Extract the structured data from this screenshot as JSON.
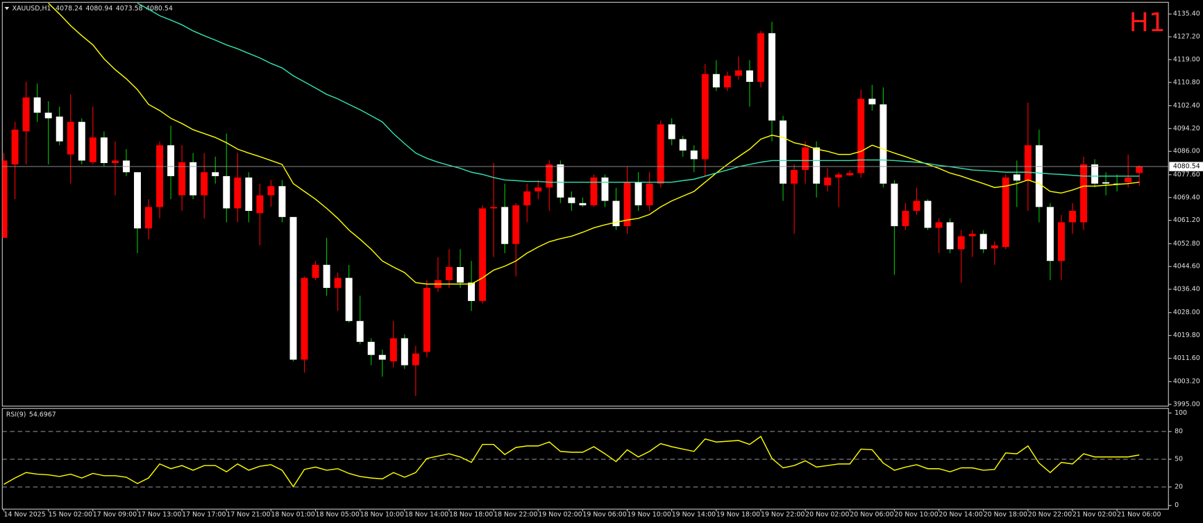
{
  "chart_data": [
    {
      "type": "candlestick",
      "title": "XAUUSD,H1",
      "timeframe": "H1",
      "categories": [
        "14 Nov 2025",
        null,
        null,
        null,
        "15 Nov 02:00",
        null,
        null,
        null,
        "17 Nov 09:00",
        null,
        null,
        null,
        "17 Nov 13:00",
        null,
        null,
        null,
        "17 Nov 17:00",
        null,
        null,
        null,
        "17 Nov 21:00",
        null,
        null,
        null,
        "18 Nov 01:00",
        null,
        null,
        null,
        "18 Nov 05:00",
        null,
        null,
        null,
        "18 Nov 10:00",
        null,
        null,
        null,
        "18 Nov 14:00",
        null,
        null,
        null,
        "18 Nov 18:00",
        null,
        null,
        null,
        "18 Nov 22:00",
        null,
        null,
        null,
        "19 Nov 02:00",
        null,
        null,
        null,
        "19 Nov 06:00",
        null,
        null,
        null,
        "19 Nov 10:00",
        null,
        null,
        null,
        "19 Nov 14:00",
        null,
        null,
        null,
        "19 Nov 18:00",
        null,
        null,
        null,
        "19 Nov 22:00",
        null,
        null,
        null,
        "20 Nov 02:00",
        null,
        null,
        null,
        "20 Nov 06:00",
        null,
        null,
        null,
        "20 Nov 10:00",
        null,
        null,
        null,
        "20 Nov 14:00",
        null,
        null,
        null,
        "20 Nov 18:00",
        null,
        null,
        null,
        "20 Nov 22:00",
        null,
        null,
        null,
        "21 Nov 02:00",
        null,
        null,
        null,
        "21 Nov 06:00",
        null,
        null
      ],
      "open": [
        4054.9,
        4081.3,
        4093.2,
        4105.4,
        4099.9,
        4098.5,
        4084.9,
        4096.6,
        4082.1,
        4091.0,
        4081.8,
        4082.7,
        4078.5,
        4058.3,
        4066.0,
        4088.2,
        4070.2,
        4082.1,
        4070.2,
        4078.5,
        4077.1,
        4065.5,
        4076.6,
        4063.8,
        4070.2,
        4073.5,
        4062.4,
        4011.1,
        4040.5,
        4045.2,
        4036.9,
        4040.5,
        4025.0,
        4017.5,
        4012.8,
        4010.5,
        4018.8,
        4009.1,
        4013.9,
        4036.9,
        4039.7,
        4044.4,
        4038.8,
        4032.2,
        4065.5,
        4066.0,
        4052.7,
        4066.6,
        4071.6,
        4073.0,
        4081.3,
        4069.4,
        4067.4,
        4066.6,
        4076.6,
        4068.2,
        4059.1,
        4074.9,
        4066.6,
        4074.4,
        4095.7,
        4090.4,
        4086.3,
        4083.2,
        4113.8,
        4109.0,
        4113.2,
        4115.1,
        4111.0,
        4128.5,
        4097.1,
        4074.4,
        4079.3,
        4087.4,
        4073.8,
        4076.6,
        4077.4,
        4078.2,
        4104.9,
        4102.9,
        4074.4,
        4059.1,
        4064.6,
        4068.2,
        4058.5,
        4060.5,
        4050.8,
        4055.5,
        4056.3,
        4051.1,
        4051.6,
        4077.7,
        4075.5,
        4088.2,
        4066.0,
        4046.6,
        4060.5,
        4060.5,
        4081.3,
        4074.9,
        4074.4,
        4074.9,
        4078.24
      ],
      "high": [
        4085.4,
        4096.6,
        4111.0,
        4110.4,
        4104.0,
        4102.1,
        4106.5,
        4097.9,
        4102.1,
        4093.2,
        4089.6,
        4086.8,
        4078.5,
        4068.8,
        4089.6,
        4095.2,
        4088.2,
        4085.4,
        4085.4,
        4084.1,
        4092.4,
        4085.4,
        4078.5,
        4074.4,
        4075.7,
        4075.7,
        4062.4,
        4041.0,
        4046.6,
        4054.9,
        4042.4,
        4045.2,
        4034.1,
        4018.8,
        4014.7,
        4025.0,
        4020.2,
        4016.1,
        4039.7,
        4048.0,
        4050.8,
        4050.8,
        4046.6,
        4066.6,
        4081.8,
        4074.4,
        4067.4,
        4074.4,
        4075.7,
        4082.7,
        4082.7,
        4071.6,
        4069.4,
        4077.7,
        4077.7,
        4072.9,
        4080.5,
        4078.5,
        4078.5,
        4097.1,
        4097.9,
        4091.6,
        4088.2,
        4117.4,
        4118.8,
        4114.6,
        4120.1,
        4118.8,
        4129.3,
        4132.6,
        4098.8,
        4081.3,
        4089.6,
        4089.6,
        4079.9,
        4078.5,
        4079.3,
        4108.2,
        4109.9,
        4109.0,
        4075.7,
        4067.4,
        4072.9,
        4068.8,
        4061.9,
        4061.9,
        4057.7,
        4057.7,
        4057.7,
        4053.6,
        4077.7,
        4082.7,
        4103.5,
        4093.8,
        4067.4,
        4063.2,
        4067.4,
        4084.1,
        4083.2,
        4078.5,
        4077.7,
        4084.9,
        4080.94
      ],
      "low": [
        4054.9,
        4068.8,
        4081.3,
        4096.6,
        4081.3,
        4088.2,
        4074.4,
        4081.3,
        4081.3,
        4080.5,
        4070.2,
        4077.1,
        4049.4,
        4054.4,
        4061.9,
        4068.8,
        4064.6,
        4068.8,
        4061.9,
        4074.4,
        4060.5,
        4060.5,
        4060.5,
        4052.2,
        4066.0,
        4060.5,
        4010.5,
        4006.4,
        4039.7,
        4034.1,
        4028.6,
        4024.4,
        4016.6,
        4009.1,
        4005.0,
        4008.3,
        4007.8,
        3998.0,
        4011.9,
        4035.5,
        4036.9,
        4036.9,
        4028.6,
        4031.3,
        4048.0,
        4049.4,
        4041.0,
        4060.5,
        4068.8,
        4064.6,
        4067.4,
        4064.6,
        4066.0,
        4066.0,
        4066.0,
        4057.7,
        4056.3,
        4064.6,
        4064.6,
        4073.0,
        4088.2,
        4084.1,
        4078.5,
        4077.1,
        4107.7,
        4107.7,
        4111.8,
        4102.1,
        4109.0,
        4089.6,
        4068.2,
        4056.3,
        4074.4,
        4069.4,
        4071.6,
        4066.0,
        4077.1,
        4076.6,
        4100.7,
        4073.0,
        4041.6,
        4057.7,
        4063.2,
        4057.7,
        4049.4,
        4049.4,
        4038.8,
        4048.0,
        4049.4,
        4045.2,
        4050.8,
        4066.0,
        4064.6,
        4060.5,
        4039.7,
        4039.7,
        4056.3,
        4057.7,
        4073.0,
        4070.2,
        4071.6,
        4073.0,
        4073.58
      ],
      "close": [
        4082.7,
        4093.8,
        4105.4,
        4099.9,
        4097.9,
        4089.6,
        4096.6,
        4082.7,
        4091.0,
        4081.8,
        4082.7,
        4078.5,
        4058.3,
        4066.0,
        4088.2,
        4077.1,
        4082.1,
        4070.2,
        4078.5,
        4077.1,
        4065.5,
        4076.6,
        4064.6,
        4070.2,
        4073.5,
        4062.4,
        4011.1,
        4040.5,
        4045.2,
        4036.9,
        4040.5,
        4025.0,
        4017.5,
        4012.8,
        4011.1,
        4018.8,
        4009.1,
        4013.3,
        4036.9,
        4039.7,
        4044.4,
        4038.8,
        4032.2,
        4065.5,
        4066.0,
        4052.7,
        4066.6,
        4071.6,
        4073.0,
        4081.3,
        4069.4,
        4067.4,
        4066.6,
        4076.6,
        4068.2,
        4059.1,
        4074.9,
        4066.6,
        4074.4,
        4095.7,
        4090.4,
        4086.3,
        4083.2,
        4113.8,
        4109.0,
        4113.2,
        4115.1,
        4111.0,
        4128.5,
        4097.1,
        4074.4,
        4079.3,
        4087.4,
        4074.4,
        4076.6,
        4077.7,
        4078.2,
        4104.9,
        4102.9,
        4074.4,
        4059.1,
        4064.6,
        4068.2,
        4058.5,
        4060.5,
        4050.8,
        4055.5,
        4056.3,
        4050.8,
        4052.2,
        4076.6,
        4075.5,
        4088.2,
        4066.0,
        4046.6,
        4060.5,
        4064.6,
        4081.3,
        4074.4,
        4074.4,
        4074.1,
        4076.6,
        4080.54
      ],
      "up_color": "#ff0000",
      "down_color": "#ffffff",
      "down_wick_color": "#00c800",
      "overlays": [
        {
          "color": "#ffff00",
          "values": [
            null,
            null,
            null,
            null,
            4139.3,
            4135.4,
            4131.2,
            4127.6,
            4124.3,
            4119.3,
            4115.4,
            4112.1,
            4108.2,
            4102.9,
            4100.7,
            4097.9,
            4096.0,
            4093.8,
            4092.4,
            4091.0,
            4089.1,
            4086.8,
            4085.4,
            4084.1,
            4082.7,
            4081.3,
            4074.4,
            4071.6,
            4068.8,
            4065.5,
            4061.9,
            4057.7,
            4054.4,
            4050.8,
            4046.6,
            4044.4,
            4042.4,
            4038.8,
            4038.3,
            4038.3,
            4038.3,
            4038.3,
            4038.3,
            4040.5,
            4043.3,
            4044.7,
            4046.6,
            4049.4,
            4051.6,
            4053.5,
            4054.6,
            4055.5,
            4056.9,
            4058.5,
            4059.6,
            4060.5,
            4061.3,
            4061.9,
            4063.3,
            4066.0,
            4068.2,
            4069.9,
            4071.6,
            4074.9,
            4078.2,
            4081.3,
            4084.1,
            4086.8,
            4090.4,
            4091.8,
            4091.0,
            4089.1,
            4088.2,
            4086.8,
            4086.0,
            4084.9,
            4084.9,
            4086.0,
            4088.2,
            4086.8,
            4085.4,
            4084.1,
            4082.7,
            4081.3,
            4079.9,
            4078.2,
            4077.1,
            4075.7,
            4074.4,
            4073.0,
            4073.5,
            4074.4,
            4075.7,
            4074.4,
            4071.6,
            4071.0,
            4072.1,
            4073.5,
            4073.5,
            4073.8,
            4074.1,
            4074.4,
            4074.9
          ]
        },
        {
          "color": "#33e0b0",
          "values": [
            null,
            null,
            null,
            null,
            null,
            null,
            null,
            null,
            null,
            null,
            null,
            null,
            4139.3,
            4137.1,
            4134.8,
            4133.2,
            4131.5,
            4129.3,
            4127.6,
            4126.0,
            4124.3,
            4122.9,
            4121.2,
            4119.6,
            4117.6,
            4116.0,
            4113.2,
            4111.0,
            4108.8,
            4106.5,
            4104.9,
            4102.9,
            4101.0,
            4098.8,
            4096.6,
            4092.4,
            4088.8,
            4085.4,
            4083.5,
            4082.1,
            4081.0,
            4079.9,
            4078.5,
            4077.7,
            4076.6,
            4075.7,
            4075.5,
            4075.2,
            4075.2,
            4074.9,
            4074.9,
            4074.9,
            4074.9,
            4074.9,
            4074.9,
            4074.9,
            4074.9,
            4074.9,
            4074.9,
            4074.9,
            4074.9,
            4075.5,
            4076.0,
            4077.1,
            4078.2,
            4079.3,
            4080.5,
            4081.3,
            4082.1,
            4082.7,
            4082.7,
            4082.7,
            4082.7,
            4082.7,
            4082.7,
            4082.7,
            4082.7,
            4082.9,
            4082.9,
            4082.9,
            4082.7,
            4082.4,
            4082.1,
            4081.6,
            4081.0,
            4080.5,
            4079.9,
            4079.3,
            4079.1,
            4078.8,
            4078.5,
            4078.5,
            4078.5,
            4078.2,
            4077.9,
            4077.7,
            4077.4,
            4077.1,
            4077.1,
            4077.1,
            4077.1,
            4077.1,
            4077.1
          ]
        }
      ],
      "ylim": [
        3994.4,
        4139.6
      ],
      "yticks": [
        {
          "value": 4135.4,
          "label": "4135.40"
        },
        {
          "value": 4127.2,
          "label": "4127.20"
        },
        {
          "value": 4119.0,
          "label": "4119.00"
        },
        {
          "value": 4110.8,
          "label": "4110.80"
        },
        {
          "value": 4102.4,
          "label": "4102.40"
        },
        {
          "value": 4094.2,
          "label": "4094.20"
        },
        {
          "value": 4086.0,
          "label": "4086.00"
        },
        {
          "value": 4077.6,
          "label": "4077.60"
        },
        {
          "value": 4069.4,
          "label": "4069.40"
        },
        {
          "value": 4061.2,
          "label": "4061.20"
        },
        {
          "value": 4052.8,
          "label": "4052.80"
        },
        {
          "value": 4044.6,
          "label": "4044.60"
        },
        {
          "value": 4036.4,
          "label": "4036.40"
        },
        {
          "value": 4028.0,
          "label": "4028.00"
        },
        {
          "value": 4019.8,
          "label": "4019.80"
        },
        {
          "value": 4011.6,
          "label": "4011.60"
        },
        {
          "value": 4003.2,
          "label": "4003.20"
        },
        {
          "value": 3995.0,
          "label": "3995.00"
        }
      ],
      "current_price_line": true
    },
    {
      "type": "line",
      "title": "RSI(9)",
      "series": [
        {
          "color": "#ffff00",
          "values": [
            22.9,
            29.7,
            35.6,
            33.9,
            33.1,
            31.4,
            33.9,
            29.7,
            34.7,
            32.2,
            32.2,
            30.5,
            23.7,
            29.7,
            44.9,
            39.8,
            43.2,
            38.1,
            43.2,
            43.2,
            36.4,
            44.9,
            38.1,
            42.4,
            44.1,
            38.1,
            20.3,
            39.0,
            41.5,
            38.1,
            39.8,
            34.7,
            31.4,
            29.7,
            28.8,
            35.6,
            30.5,
            35.6,
            50.8,
            53.4,
            55.9,
            52.5,
            46.6,
            66.1,
            66.1,
            55.1,
            62.7,
            64.4,
            64.4,
            68.6,
            58.5,
            57.6,
            57.6,
            63.6,
            55.9,
            47.5,
            60.2,
            52.5,
            58.5,
            66.9,
            63.6,
            61.0,
            58.5,
            72.0,
            68.6,
            69.5,
            70.3,
            66.1,
            74.6,
            50.8,
            40.7,
            43.2,
            48.3,
            41.5,
            43.2,
            44.9,
            44.9,
            61.0,
            60.2,
            45.8,
            38.1,
            41.5,
            44.1,
            39.8,
            39.8,
            36.4,
            40.7,
            40.7,
            38.1,
            39.0,
            56.8,
            55.9,
            64.4,
            45.8,
            35.6,
            46.6,
            44.9,
            55.9,
            52.5,
            52.5,
            52.5,
            52.5,
            54.6967
          ]
        }
      ],
      "ylim": [
        -4,
        105
      ],
      "yticks": [
        100,
        80,
        50,
        20,
        0
      ],
      "levels": [
        80,
        50,
        20
      ]
    }
  ]
}
